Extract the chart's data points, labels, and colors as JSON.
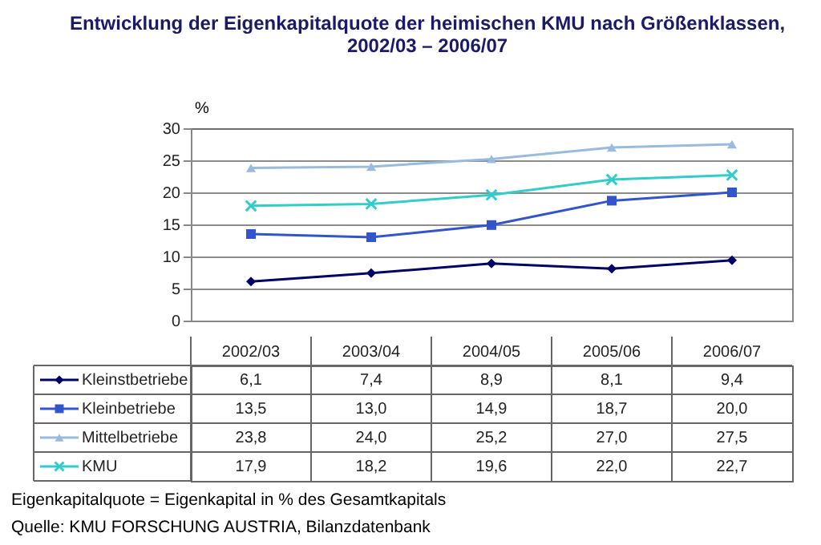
{
  "chart_data": {
    "type": "line",
    "title": "Entwicklung der Eigenkapitalquote der heimischen KMU nach Größenklassen, 2002/03 – 2006/07",
    "ylabel": "%",
    "categories": [
      "2002/03",
      "2003/04",
      "2004/05",
      "2005/06",
      "2006/07"
    ],
    "series": [
      {
        "name": "Kleinstbetriebe",
        "color": "#000066",
        "marker": "diamond",
        "values": [
          6.1,
          7.4,
          8.9,
          8.1,
          9.4
        ],
        "value_labels": [
          "6,1",
          "7,4",
          "8,9",
          "8,1",
          "9,4"
        ]
      },
      {
        "name": "Kleinbetriebe",
        "color": "#3355cc",
        "marker": "square",
        "values": [
          13.5,
          13.0,
          14.9,
          18.7,
          20.0
        ],
        "value_labels": [
          "13,5",
          "13,0",
          "14,9",
          "18,7",
          "20,0"
        ]
      },
      {
        "name": "Mittelbetriebe",
        "color": "#99bbdd",
        "marker": "triangle",
        "values": [
          23.8,
          24.0,
          25.2,
          27.0,
          27.5
        ],
        "value_labels": [
          "23,8",
          "24,0",
          "25,2",
          "27,0",
          "27,5"
        ]
      },
      {
        "name": "KMU",
        "color": "#33cccc",
        "marker": "cross",
        "values": [
          17.9,
          18.2,
          19.6,
          22.0,
          22.7
        ],
        "value_labels": [
          "17,9",
          "18,2",
          "19,6",
          "22,0",
          "22,7"
        ]
      }
    ],
    "ylim": [
      0,
      30
    ],
    "yticks": [
      0,
      5,
      10,
      15,
      20,
      25,
      30
    ],
    "grid": "y",
    "legend": "bottom",
    "annotations": [
      "Eigenkapitalquote = Eigenkapital in % des Gesamtkapitals",
      "Quelle: KMU FORSCHUNG AUSTRIA, Bilanzdatenbank"
    ]
  }
}
